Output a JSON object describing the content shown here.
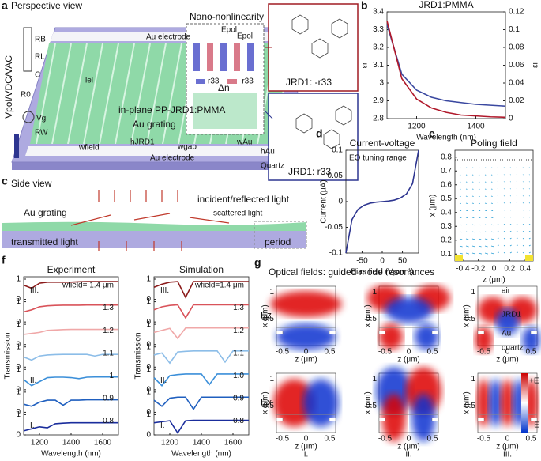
{
  "panel_letters": [
    "a",
    "b",
    "c",
    "d",
    "e",
    "f",
    "g"
  ],
  "perspective": {
    "title": "Perspective view",
    "inset": "Nano-nonlinearity",
    "electrode_top": "Au electrode",
    "electrode_bottom": "Au electrode",
    "substrate": "Quartz",
    "film": "in-plane PP-JRD1:PMMA",
    "grating": "Au grating",
    "length": "lel",
    "widths": [
      "wfield",
      "hJRD1",
      "wgap",
      "wAu",
      "hAu"
    ],
    "circuit": [
      "Vpol/VDC/VAC",
      "RB",
      "RL",
      "C",
      "R0",
      "Vg",
      "RW"
    ],
    "field_labels": [
      "Epol",
      "Epol"
    ],
    "legend": [
      "r33",
      "-r33"
    ],
    "index": "Δn",
    "molecules": [
      "JRD1: -r33",
      "JRD1: r33"
    ]
  },
  "side": {
    "title": "Side view",
    "incident": "incident/reflected light",
    "grating": "Au grating",
    "scattered": "scattered light",
    "transmitted": "transmitted light",
    "period": "period"
  },
  "chart_data": [
    {
      "type": "line",
      "title": "JRD1:PMMA",
      "xlabel": "Wavelength (nm)",
      "ylabel": "εr",
      "y2label": "εi",
      "x": [
        1100,
        1150,
        1200,
        1250,
        1300,
        1350,
        1400,
        1450,
        1500
      ],
      "xlim": [
        1100,
        1500
      ],
      "xticks": [
        1200,
        1400
      ],
      "ylim": [
        2.8,
        3.4
      ],
      "yticks": [
        2.8,
        2.9,
        3,
        3.1,
        3.2,
        3.3,
        3.4
      ],
      "y2lim": [
        0,
        0.12
      ],
      "y2ticks": [
        0,
        0.02,
        0.04,
        0.06,
        0.08,
        0.1,
        0.12
      ],
      "series": [
        {
          "name": "εr",
          "color": "#3a48a0",
          "values": [
            3.33,
            3.05,
            2.96,
            2.92,
            2.9,
            2.89,
            2.88,
            2.875,
            2.87
          ]
        },
        {
          "name": "εi",
          "color": "#b0182a",
          "axis": "y2",
          "values": [
            0.11,
            0.045,
            0.022,
            0.012,
            0.007,
            0.004,
            0.003,
            0.002,
            0.0015
          ]
        }
      ]
    },
    {
      "type": "line",
      "title": "Current-voltage",
      "xlabel": "Bias field (Vμm⁻¹)",
      "ylabel": "Current (μA)",
      "annotations": [
        "EO tuning range"
      ],
      "x": [
        -90,
        -75,
        -60,
        -45,
        -30,
        -15,
        0,
        15,
        30,
        45,
        60,
        75,
        90
      ],
      "xlim": [
        -90,
        90
      ],
      "xticks": [
        -50,
        0,
        50
      ],
      "ylim": [
        -0.1,
        0.1
      ],
      "yticks": [
        -0.1,
        -0.05,
        0,
        0.05,
        0.1
      ],
      "series": [
        {
          "color": "#2d3590",
          "values": [
            -0.1,
            -0.035,
            -0.015,
            -0.007,
            -0.003,
            -0.001,
            0,
            0.001,
            0.003,
            0.007,
            0.015,
            0.035,
            0.1
          ]
        }
      ]
    },
    {
      "type": "quiver",
      "title": "Poling field",
      "xlabel": "z (μm)",
      "ylabel": "x (μm)",
      "xlim": [
        -0.5,
        0.5
      ],
      "xticks": [
        -0.4,
        -0.2,
        0,
        0.2,
        0.4
      ],
      "ylim": [
        0.05,
        0.85
      ],
      "yticks": [
        0.1,
        0.2,
        0.3,
        0.4,
        0.5,
        0.6,
        0.7,
        0.8
      ]
    },
    {
      "type": "bands",
      "title": "Experiment",
      "xlabel": "Wavelength (nm)",
      "ylabel": "Transmission",
      "annotations": [
        "III.",
        "II.",
        "I."
      ],
      "x": [
        1100,
        1150,
        1200,
        1250,
        1300,
        1350,
        1400,
        1450,
        1500,
        1550,
        1600,
        1650,
        1700
      ],
      "xlim": [
        1100,
        1700
      ],
      "xticks": [
        1200,
        1400,
        1600
      ],
      "ylim": [
        0,
        1
      ],
      "yticks": [
        0,
        1
      ],
      "series": [
        {
          "name": "wfield= 1.4 μm",
          "color": "#8b1a1a",
          "values": [
            0.7,
            0.55,
            0.8,
            0.85,
            0.85,
            0.85,
            0.85,
            0.87,
            0.88,
            0.88,
            0.88,
            0.88,
            0.88
          ]
        },
        {
          "name": "1.3",
          "color": "#d9535a",
          "values": [
            0.5,
            0.6,
            0.75,
            0.8,
            0.82,
            0.83,
            0.83,
            0.83,
            0.84,
            0.84,
            0.84,
            0.84,
            0.84
          ]
        },
        {
          "name": "1.2",
          "color": "#f0a8a8",
          "values": [
            0.5,
            0.55,
            0.6,
            0.7,
            0.72,
            0.74,
            0.75,
            0.75,
            0.75,
            0.75,
            0.75,
            0.75,
            0.75
          ]
        },
        {
          "name": "1.1",
          "color": "#8cbde8",
          "values": [
            0.5,
            0.35,
            0.55,
            0.6,
            0.62,
            0.63,
            0.63,
            0.63,
            0.63,
            0.55,
            0.63,
            0.63,
            0.63
          ]
        },
        {
          "name": "1",
          "color": "#3b8fd9",
          "values": [
            0.5,
            0.2,
            0.4,
            0.6,
            0.62,
            0.62,
            0.6,
            0.55,
            0.62,
            0.63,
            0.63,
            0.63,
            0.63
          ]
        },
        {
          "name": "0.9",
          "color": "#1f5fbf",
          "values": [
            0.4,
            0.3,
            0.5,
            0.6,
            0.6,
            0.35,
            0.6,
            0.6,
            0.62,
            0.62,
            0.62,
            0.62,
            0.62
          ]
        },
        {
          "name": "0.8",
          "color": "#1a2d9c",
          "values": [
            0.2,
            0.3,
            0.4,
            0.35,
            0.55,
            0.58,
            0.6,
            0.6,
            0.6,
            0.6,
            0.6,
            0.6,
            0.6
          ]
        }
      ]
    },
    {
      "type": "bands",
      "title": "Simulation",
      "xlabel": "Wavelength (nm)",
      "ylabel": "Transmission",
      "annotations": [
        "III.",
        "II.",
        "I."
      ],
      "x": [
        1100,
        1150,
        1200,
        1250,
        1300,
        1350,
        1400,
        1450,
        1500,
        1550,
        1600,
        1650,
        1700
      ],
      "xlim": [
        1100,
        1700
      ],
      "xticks": [
        1200,
        1400,
        1600
      ],
      "ylim": [
        0,
        1
      ],
      "yticks": [
        0,
        1
      ],
      "series": [
        {
          "name": "wfield=1.4 μm",
          "color": "#8b1a1a",
          "values": [
            0.6,
            0.75,
            0.85,
            0.88,
            0.1,
            0.88,
            0.88,
            0.88,
            0.88,
            0.88,
            0.88,
            0.88,
            0.88
          ]
        },
        {
          "name": "1.3",
          "color": "#d9535a",
          "values": [
            0.6,
            0.75,
            0.82,
            0.85,
            0.2,
            0.85,
            0.85,
            0.85,
            0.85,
            0.85,
            0.85,
            0.85,
            0.85
          ]
        },
        {
          "name": "1.2",
          "color": "#f0a8a8",
          "values": [
            0.6,
            0.7,
            0.8,
            0.3,
            0.82,
            0.82,
            0.82,
            0.82,
            0.82,
            0.82,
            0.82,
            0.82,
            0.82
          ]
        },
        {
          "name": "1.1",
          "color": "#8cbde8",
          "values": [
            0.6,
            0.7,
            0.2,
            0.75,
            0.78,
            0.8,
            0.8,
            0.8,
            0.8,
            0.25,
            0.8,
            0.8,
            0.8
          ]
        },
        {
          "name": "1.0",
          "color": "#3b8fd9",
          "values": [
            0.6,
            0.2,
            0.7,
            0.75,
            0.78,
            0.78,
            0.78,
            0.25,
            0.78,
            0.78,
            0.78,
            0.78,
            0.78
          ]
        },
        {
          "name": "0.9",
          "color": "#1f5fbf",
          "values": [
            0.6,
            0.3,
            0.7,
            0.75,
            0.75,
            0.15,
            0.75,
            0.75,
            0.75,
            0.75,
            0.75,
            0.75,
            0.75
          ]
        },
        {
          "name": "0.8",
          "color": "#1a2d9c",
          "values": [
            0.6,
            0.65,
            0.7,
            0.1,
            0.7,
            0.72,
            0.72,
            0.72,
            0.72,
            0.72,
            0.72,
            0.72,
            0.72
          ]
        }
      ]
    }
  ],
  "fields": {
    "title": "Optical fields: guided mode resonances",
    "rows": [
      "Ez",
      "Ex"
    ],
    "cols": [
      "I.",
      "II.",
      "III."
    ],
    "xlabel": "z (μm)",
    "ylabel": "x (μm)",
    "xticks": [
      -0.5,
      0,
      0.5
    ],
    "yticks": [
      0.5,
      1
    ],
    "layers": [
      "air",
      "JRD1",
      "Au",
      "quartz"
    ],
    "colorbar": [
      "+E",
      "- E"
    ]
  }
}
